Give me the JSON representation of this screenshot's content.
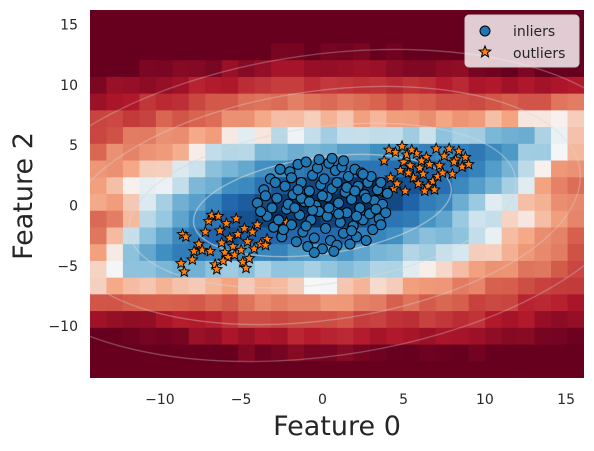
{
  "chart_data": {
    "type": "scatter",
    "xlabel": "Feature 0",
    "ylabel": "Feature 2",
    "xlim": [
      -14.3,
      16.1
    ],
    "ylim": [
      -14.3,
      16.2
    ],
    "xticks": [
      -10,
      -5,
      0,
      5,
      10,
      15
    ],
    "xtick_labels": [
      "−10",
      "−5",
      "0",
      "5",
      "10",
      "15"
    ],
    "yticks": [
      -10,
      -5,
      0,
      5,
      10,
      15
    ],
    "ytick_labels": [
      "−10",
      "−5",
      "0",
      "5",
      "10",
      "15"
    ],
    "grid": false,
    "background": "anomaly decision-function heatmap (RdBu colormap, blue = normal, red = anomalous) with light contour lines",
    "legend": {
      "placement": "top-right",
      "entries": [
        {
          "label": "inliers",
          "marker": "circle",
          "color": "#1f77b4"
        },
        {
          "label": "outliers",
          "marker": "star",
          "color": "#ff7f0e"
        }
      ]
    },
    "series": [
      {
        "name": "inliers",
        "marker": "circle",
        "color": "#1f77b4",
        "points": [
          [
            -4,
            0.2
          ],
          [
            -3.6,
            1.3
          ],
          [
            -3.4,
            -0.9
          ],
          [
            -3.2,
            2.2
          ],
          [
            -3,
            -1.8
          ],
          [
            -2.8,
            0.6
          ],
          [
            -2.6,
            3
          ],
          [
            -2.5,
            -2.6
          ],
          [
            -2.3,
            1.6
          ],
          [
            -2.2,
            -0.3
          ],
          [
            -2,
            2.8
          ],
          [
            -1.9,
            -1.6
          ],
          [
            -1.8,
            0.9
          ],
          [
            -1.6,
            -3
          ],
          [
            -1.5,
            3.4
          ],
          [
            -1.4,
            -0.8
          ],
          [
            -1.3,
            1.9
          ],
          [
            -1.2,
            -2.2
          ],
          [
            -1.1,
            0.3
          ],
          [
            -1,
            3.6
          ],
          [
            -0.9,
            -3.4
          ],
          [
            -0.8,
            1.2
          ],
          [
            -0.7,
            -1.2
          ],
          [
            -0.6,
            2.5
          ],
          [
            -0.5,
            -2.7
          ],
          [
            -0.4,
            0
          ],
          [
            -0.3,
            3.1
          ],
          [
            -0.2,
            -0.5
          ],
          [
            -0.1,
            1.7
          ],
          [
            0,
            -3.6
          ],
          [
            0.1,
            2.2
          ],
          [
            0.2,
            -1.9
          ],
          [
            0.3,
            0.7
          ],
          [
            0.4,
            3.5
          ],
          [
            0.5,
            -2.9
          ],
          [
            0.6,
            1.4
          ],
          [
            0.7,
            -0.3
          ],
          [
            0.8,
            2.9
          ],
          [
            0.9,
            -3.3
          ],
          [
            1,
            0.2
          ],
          [
            1.1,
            -1.4
          ],
          [
            1.2,
            3.2
          ],
          [
            1.3,
            -2.3
          ],
          [
            1.4,
            1.1
          ],
          [
            1.5,
            -0.6
          ],
          [
            1.6,
            2.4
          ],
          [
            1.7,
            -3.2
          ],
          [
            1.8,
            0.5
          ],
          [
            1.9,
            -1.7
          ],
          [
            2,
            3
          ],
          [
            2.1,
            -2.6
          ],
          [
            2.2,
            1.6
          ],
          [
            2.3,
            -0.2
          ],
          [
            2.4,
            2.7
          ],
          [
            2.5,
            -1.2
          ],
          [
            2.6,
            0.9
          ],
          [
            2.7,
            -2.9
          ],
          [
            2.8,
            1.9
          ],
          [
            2.9,
            -0.7
          ],
          [
            3,
            2.4
          ],
          [
            3.1,
            -2
          ],
          [
            3.2,
            0.4
          ],
          [
            3.4,
            1.3
          ],
          [
            3.5,
            -1.1
          ],
          [
            3.7,
            0.1
          ],
          [
            3.9,
            -0.6
          ],
          [
            4,
            1
          ],
          [
            -3.8,
            -0.5
          ],
          [
            -3.5,
            0.8
          ],
          [
            -2.7,
            -1.2
          ],
          [
            -2.1,
            0.1
          ],
          [
            -1.7,
            -0.2
          ],
          [
            -1.3,
            0.6
          ],
          [
            -0.6,
            -0.4
          ],
          [
            0.3,
            -0.9
          ],
          [
            0.9,
            1.9
          ],
          [
            1.5,
            1.5
          ],
          [
            2.1,
            -0.9
          ],
          [
            2.7,
            0.6
          ],
          [
            3.3,
            -0.3
          ],
          [
            -0.2,
            3.8
          ],
          [
            0.6,
            3.9
          ],
          [
            1.3,
            3.7
          ],
          [
            -0.5,
            -3.9
          ],
          [
            0.7,
            -3.8
          ],
          [
            -2.9,
            1.9
          ],
          [
            -3.1,
            -0.2
          ],
          [
            3.6,
            1.9
          ],
          [
            3.6,
            -1.6
          ],
          [
            -1,
            -1.7
          ],
          [
            0,
            0.8
          ],
          [
            1,
            -0.7
          ],
          [
            -1.5,
            1.3
          ],
          [
            2,
            1.2
          ],
          [
            -0.8,
            0.3
          ],
          [
            0.4,
            -0.2
          ],
          [
            1.8,
            -2.1
          ],
          [
            -2.4,
            -2
          ],
          [
            2.5,
            2.6
          ],
          [
            -1.9,
            2.3
          ]
        ]
      },
      {
        "name": "outliers",
        "marker": "star",
        "color": "#ff7f0e",
        "points": [
          [
            -8.6,
            -2.4
          ],
          [
            -8.4,
            -2.6
          ],
          [
            -8.7,
            -4.8
          ],
          [
            -8.5,
            -5.5
          ],
          [
            -8,
            -4.5
          ],
          [
            -7.6,
            -3.2
          ],
          [
            -7.4,
            -3.7
          ],
          [
            -7.2,
            -2.2
          ],
          [
            -7,
            -1.3
          ],
          [
            -6.9,
            -3.8
          ],
          [
            -6.8,
            -0.8
          ],
          [
            -6.6,
            -4.9
          ],
          [
            -6.5,
            -5.3
          ],
          [
            -6.3,
            -2.1
          ],
          [
            -6.2,
            -3.1
          ],
          [
            -6,
            -3.9
          ],
          [
            -5.9,
            -1.5
          ],
          [
            -5.8,
            -4.3
          ],
          [
            -5.7,
            -2.7
          ],
          [
            -5.5,
            -3.4
          ],
          [
            -5.4,
            -4.1
          ],
          [
            -5.2,
            -2.4
          ],
          [
            -5,
            -3.7
          ],
          [
            -4.9,
            -4.7
          ],
          [
            -4.8,
            -1.9
          ],
          [
            -4.6,
            -3
          ],
          [
            -4.5,
            -4.4
          ],
          [
            -4.3,
            -2.2
          ],
          [
            -4.2,
            -3.6
          ],
          [
            -4,
            -1.6
          ],
          [
            -3.8,
            -3.2
          ],
          [
            -3.4,
            -2.8
          ],
          [
            -2.6,
            -2.1
          ],
          [
            -2.2,
            -1.4
          ],
          [
            -6.4,
            -0.9
          ],
          [
            -5.3,
            -1.1
          ],
          [
            -4.7,
            -5.2
          ],
          [
            -7.9,
            -3.8
          ],
          [
            -6.1,
            -4.6
          ],
          [
            -3.5,
            -3.3
          ],
          [
            3.8,
            3.7
          ],
          [
            4.2,
            2.3
          ],
          [
            4.5,
            4.4
          ],
          [
            4.8,
            2.9
          ],
          [
            5,
            3.6
          ],
          [
            5.2,
            4.2
          ],
          [
            5.4,
            3.3
          ],
          [
            5.6,
            2.3
          ],
          [
            5.8,
            4.3
          ],
          [
            6,
            3.1
          ],
          [
            6.2,
            2.6
          ],
          [
            6.4,
            4
          ],
          [
            6.6,
            3.4
          ],
          [
            6.8,
            2
          ],
          [
            7,
            4.7
          ],
          [
            7.2,
            3.3
          ],
          [
            7.5,
            4.1
          ],
          [
            7.8,
            4.7
          ],
          [
            8,
            2.6
          ],
          [
            8.2,
            3.8
          ],
          [
            8.4,
            4.5
          ],
          [
            8.6,
            3.2
          ],
          [
            8.8,
            4
          ],
          [
            9,
            3.4
          ],
          [
            4.4,
            1.4
          ],
          [
            5.1,
            1.2
          ],
          [
            5.9,
            1.8
          ],
          [
            6.5,
            1.6
          ],
          [
            7.1,
            2.4
          ],
          [
            4.1,
            4.6
          ],
          [
            4.9,
            4.9
          ],
          [
            5.5,
            4.6
          ],
          [
            6.3,
            1.2
          ],
          [
            3.5,
            1.1
          ],
          [
            4.6,
            1.8
          ],
          [
            5.3,
            2.7
          ],
          [
            6.1,
            3.7
          ],
          [
            7.4,
            2.7
          ],
          [
            8.1,
            3.6
          ],
          [
            6.9,
            1.3
          ]
        ]
      }
    ]
  }
}
